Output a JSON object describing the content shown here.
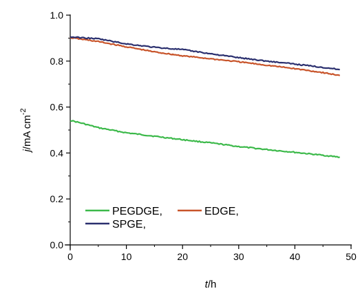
{
  "chart_data": {
    "type": "line",
    "xlabel": {
      "italic": "t",
      "rest": "/h"
    },
    "ylabel": {
      "italic": "j",
      "rest": "/mA cm",
      "sup": "-2"
    },
    "xlim": [
      0,
      50
    ],
    "ylim": [
      0.0,
      1.0
    ],
    "x_ticks": [
      "0",
      "10",
      "20",
      "30",
      "40",
      "50"
    ],
    "y_ticks": [
      "0.0",
      "0.2",
      "0.4",
      "0.6",
      "0.8",
      "1.0"
    ],
    "grid": false,
    "legend_position": "bottom-left",
    "series": [
      {
        "name": "PEGDGE,",
        "color": "#3cb94a",
        "x": [
          0,
          2,
          5,
          10,
          15,
          20,
          25,
          30,
          35,
          40,
          45,
          48
        ],
        "y": [
          0.542,
          0.53,
          0.51,
          0.488,
          0.473,
          0.458,
          0.444,
          0.428,
          0.415,
          0.403,
          0.39,
          0.382
        ]
      },
      {
        "name": "EDGE,",
        "color": "#c8542a",
        "x": [
          0,
          5,
          10,
          15,
          20,
          25,
          30,
          35,
          40,
          45,
          48
        ],
        "y": [
          0.902,
          0.885,
          0.862,
          0.84,
          0.823,
          0.81,
          0.797,
          0.782,
          0.767,
          0.75,
          0.737
        ]
      },
      {
        "name": "SPGE,",
        "color": "#2a2f6e",
        "x": [
          0,
          5,
          10,
          15,
          20,
          25,
          30,
          35,
          40,
          45,
          48
        ],
        "y": [
          0.905,
          0.897,
          0.875,
          0.86,
          0.85,
          0.832,
          0.815,
          0.8,
          0.787,
          0.773,
          0.763
        ]
      }
    ]
  }
}
